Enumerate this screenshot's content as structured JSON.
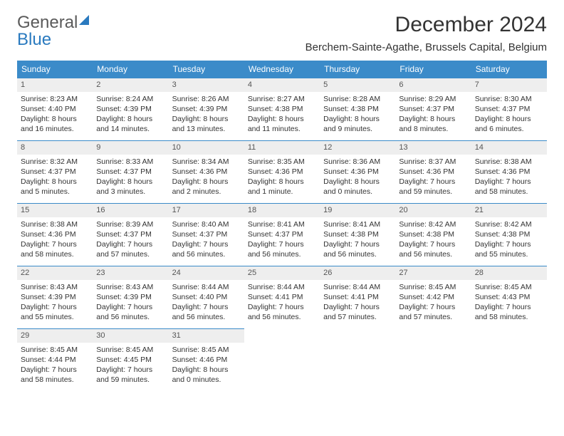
{
  "logo": {
    "part1": "General",
    "part2": "Blue"
  },
  "title": "December 2024",
  "subtitle": "Berchem-Sainte-Agathe, Brussels Capital, Belgium",
  "colors": {
    "header_bg": "#3b8bc9",
    "header_text": "#ffffff",
    "daynum_bg": "#eeeeee",
    "row_border": "#3b8bc9",
    "logo_blue": "#2a7abf",
    "logo_gray": "#5a5a5a",
    "page_bg": "#ffffff",
    "body_text": "#333333"
  },
  "typography": {
    "title_fontsize": 30,
    "subtitle_fontsize": 15,
    "dayheader_fontsize": 12,
    "cell_fontsize": 10.5
  },
  "day_headers": [
    "Sunday",
    "Monday",
    "Tuesday",
    "Wednesday",
    "Thursday",
    "Friday",
    "Saturday"
  ],
  "weeks": [
    [
      {
        "num": "1",
        "sunrise": "Sunrise: 8:23 AM",
        "sunset": "Sunset: 4:40 PM",
        "daylight": "Daylight: 8 hours and 16 minutes."
      },
      {
        "num": "2",
        "sunrise": "Sunrise: 8:24 AM",
        "sunset": "Sunset: 4:39 PM",
        "daylight": "Daylight: 8 hours and 14 minutes."
      },
      {
        "num": "3",
        "sunrise": "Sunrise: 8:26 AM",
        "sunset": "Sunset: 4:39 PM",
        "daylight": "Daylight: 8 hours and 13 minutes."
      },
      {
        "num": "4",
        "sunrise": "Sunrise: 8:27 AM",
        "sunset": "Sunset: 4:38 PM",
        "daylight": "Daylight: 8 hours and 11 minutes."
      },
      {
        "num": "5",
        "sunrise": "Sunrise: 8:28 AM",
        "sunset": "Sunset: 4:38 PM",
        "daylight": "Daylight: 8 hours and 9 minutes."
      },
      {
        "num": "6",
        "sunrise": "Sunrise: 8:29 AM",
        "sunset": "Sunset: 4:37 PM",
        "daylight": "Daylight: 8 hours and 8 minutes."
      },
      {
        "num": "7",
        "sunrise": "Sunrise: 8:30 AM",
        "sunset": "Sunset: 4:37 PM",
        "daylight": "Daylight: 8 hours and 6 minutes."
      }
    ],
    [
      {
        "num": "8",
        "sunrise": "Sunrise: 8:32 AM",
        "sunset": "Sunset: 4:37 PM",
        "daylight": "Daylight: 8 hours and 5 minutes."
      },
      {
        "num": "9",
        "sunrise": "Sunrise: 8:33 AM",
        "sunset": "Sunset: 4:37 PM",
        "daylight": "Daylight: 8 hours and 3 minutes."
      },
      {
        "num": "10",
        "sunrise": "Sunrise: 8:34 AM",
        "sunset": "Sunset: 4:36 PM",
        "daylight": "Daylight: 8 hours and 2 minutes."
      },
      {
        "num": "11",
        "sunrise": "Sunrise: 8:35 AM",
        "sunset": "Sunset: 4:36 PM",
        "daylight": "Daylight: 8 hours and 1 minute."
      },
      {
        "num": "12",
        "sunrise": "Sunrise: 8:36 AM",
        "sunset": "Sunset: 4:36 PM",
        "daylight": "Daylight: 8 hours and 0 minutes."
      },
      {
        "num": "13",
        "sunrise": "Sunrise: 8:37 AM",
        "sunset": "Sunset: 4:36 PM",
        "daylight": "Daylight: 7 hours and 59 minutes."
      },
      {
        "num": "14",
        "sunrise": "Sunrise: 8:38 AM",
        "sunset": "Sunset: 4:36 PM",
        "daylight": "Daylight: 7 hours and 58 minutes."
      }
    ],
    [
      {
        "num": "15",
        "sunrise": "Sunrise: 8:38 AM",
        "sunset": "Sunset: 4:36 PM",
        "daylight": "Daylight: 7 hours and 58 minutes."
      },
      {
        "num": "16",
        "sunrise": "Sunrise: 8:39 AM",
        "sunset": "Sunset: 4:37 PM",
        "daylight": "Daylight: 7 hours and 57 minutes."
      },
      {
        "num": "17",
        "sunrise": "Sunrise: 8:40 AM",
        "sunset": "Sunset: 4:37 PM",
        "daylight": "Daylight: 7 hours and 56 minutes."
      },
      {
        "num": "18",
        "sunrise": "Sunrise: 8:41 AM",
        "sunset": "Sunset: 4:37 PM",
        "daylight": "Daylight: 7 hours and 56 minutes."
      },
      {
        "num": "19",
        "sunrise": "Sunrise: 8:41 AM",
        "sunset": "Sunset: 4:38 PM",
        "daylight": "Daylight: 7 hours and 56 minutes."
      },
      {
        "num": "20",
        "sunrise": "Sunrise: 8:42 AM",
        "sunset": "Sunset: 4:38 PM",
        "daylight": "Daylight: 7 hours and 56 minutes."
      },
      {
        "num": "21",
        "sunrise": "Sunrise: 8:42 AM",
        "sunset": "Sunset: 4:38 PM",
        "daylight": "Daylight: 7 hours and 55 minutes."
      }
    ],
    [
      {
        "num": "22",
        "sunrise": "Sunrise: 8:43 AM",
        "sunset": "Sunset: 4:39 PM",
        "daylight": "Daylight: 7 hours and 55 minutes."
      },
      {
        "num": "23",
        "sunrise": "Sunrise: 8:43 AM",
        "sunset": "Sunset: 4:39 PM",
        "daylight": "Daylight: 7 hours and 56 minutes."
      },
      {
        "num": "24",
        "sunrise": "Sunrise: 8:44 AM",
        "sunset": "Sunset: 4:40 PM",
        "daylight": "Daylight: 7 hours and 56 minutes."
      },
      {
        "num": "25",
        "sunrise": "Sunrise: 8:44 AM",
        "sunset": "Sunset: 4:41 PM",
        "daylight": "Daylight: 7 hours and 56 minutes."
      },
      {
        "num": "26",
        "sunrise": "Sunrise: 8:44 AM",
        "sunset": "Sunset: 4:41 PM",
        "daylight": "Daylight: 7 hours and 57 minutes."
      },
      {
        "num": "27",
        "sunrise": "Sunrise: 8:45 AM",
        "sunset": "Sunset: 4:42 PM",
        "daylight": "Daylight: 7 hours and 57 minutes."
      },
      {
        "num": "28",
        "sunrise": "Sunrise: 8:45 AM",
        "sunset": "Sunset: 4:43 PM",
        "daylight": "Daylight: 7 hours and 58 minutes."
      }
    ],
    [
      {
        "num": "29",
        "sunrise": "Sunrise: 8:45 AM",
        "sunset": "Sunset: 4:44 PM",
        "daylight": "Daylight: 7 hours and 58 minutes."
      },
      {
        "num": "30",
        "sunrise": "Sunrise: 8:45 AM",
        "sunset": "Sunset: 4:45 PM",
        "daylight": "Daylight: 7 hours and 59 minutes."
      },
      {
        "num": "31",
        "sunrise": "Sunrise: 8:45 AM",
        "sunset": "Sunset: 4:46 PM",
        "daylight": "Daylight: 8 hours and 0 minutes."
      },
      null,
      null,
      null,
      null
    ]
  ]
}
